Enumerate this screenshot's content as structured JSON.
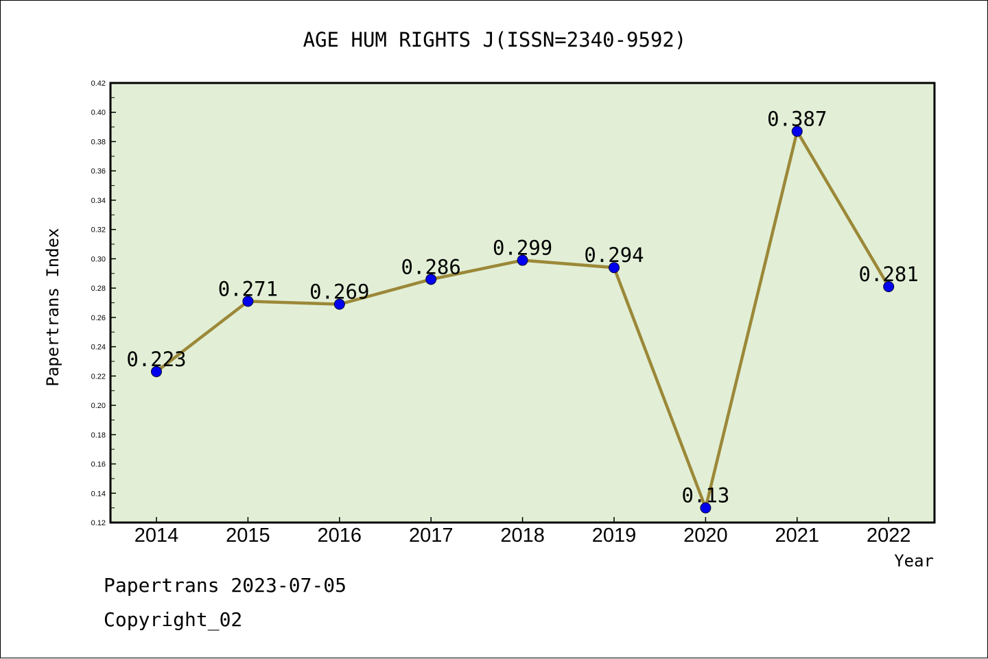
{
  "chart_data": {
    "type": "line",
    "title": "AGE HUM RIGHTS J(ISSN=2340-9592)",
    "xlabel": "Year",
    "ylabel": "Papertrans Index",
    "categories": [
      "2014",
      "2015",
      "2016",
      "2017",
      "2018",
      "2019",
      "2020",
      "2021",
      "2022"
    ],
    "series": [
      {
        "values": [
          0.223,
          0.271,
          0.269,
          0.286,
          0.299,
          0.294,
          0.13,
          0.387,
          0.281
        ],
        "labels": [
          "0.223",
          "0.271",
          "0.269",
          "0.286",
          "0.299",
          "0.294",
          "0.13",
          "0.387",
          "0.281"
        ]
      }
    ],
    "ylim": [
      0.12,
      0.42
    ],
    "yticks": [
      "0.12",
      "0.14",
      "0.16",
      "0.18",
      "0.20",
      "0.22",
      "0.24",
      "0.26",
      "0.28",
      "0.30",
      "0.32",
      "0.34",
      "0.36",
      "0.38",
      "0.40",
      "0.42"
    ],
    "grid": false,
    "colors": {
      "plot_background": "#e2efd6",
      "line": "#9b8838",
      "marker": "#0000ee",
      "frame": "#000000"
    }
  },
  "footer": {
    "date_line": "Papertrans 2023-07-05",
    "copyright": "Copyright_02"
  }
}
